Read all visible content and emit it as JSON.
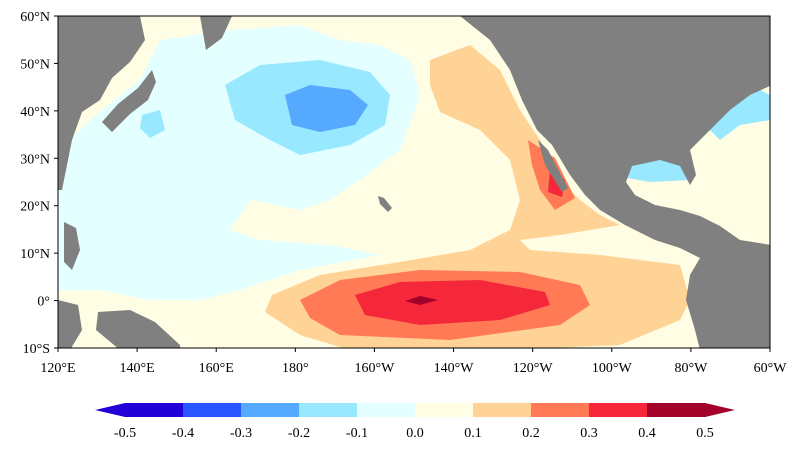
{
  "map": {
    "lat_labels": [
      "60°N",
      "50°N",
      "40°N",
      "30°N",
      "20°N",
      "10°N",
      "0°",
      "10°S"
    ],
    "lon_labels": [
      "120°E",
      "140°E",
      "160°E",
      "180°",
      "160°W",
      "140°W",
      "120°W",
      "100°W",
      "80°W",
      "60°W"
    ]
  },
  "colorbar": {
    "labels": [
      "-0.5",
      "-0.4",
      "-0.3",
      "-0.2",
      "-0.1",
      "0.0",
      "0.1",
      "0.2",
      "0.3",
      "0.4",
      "0.5"
    ],
    "colors": [
      "#2200d8",
      "#2a55ff",
      "#55aaff",
      "#98e8ff",
      "#e3ffff",
      "#fffde3",
      "#ffd395",
      "#ff7a55",
      "#f5273a",
      "#a3002a"
    ]
  },
  "colors": {
    "land": "#808080",
    "ocean_base": "#fffde3"
  }
}
